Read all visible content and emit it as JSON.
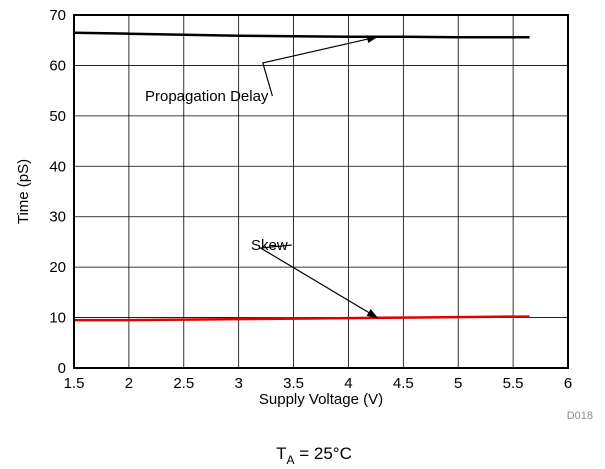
{
  "chart_data": {
    "type": "line",
    "title": "",
    "xlabel": "Supply Voltage (V)",
    "ylabel": "Time (pS)",
    "xlim": [
      1.5,
      6
    ],
    "ylim": [
      0,
      70
    ],
    "xticks": [
      1.5,
      2,
      2.5,
      3,
      3.5,
      4,
      4.5,
      5,
      5.5,
      6
    ],
    "yticks": [
      0,
      10,
      20,
      30,
      40,
      50,
      60,
      70
    ],
    "xtick_labels": [
      "1.5",
      "2",
      "2.5",
      "3",
      "3.5",
      "4",
      "4.5",
      "5",
      "5.5",
      "6"
    ],
    "ytick_labels": [
      "0",
      "10",
      "20",
      "30",
      "40",
      "50",
      "60",
      "70"
    ],
    "grid": true,
    "series": [
      {
        "name": "Propagation Delay",
        "color": "#000000",
        "x": [
          1.5,
          2.0,
          2.5,
          3.0,
          3.5,
          4.0,
          4.5,
          5.0,
          5.5,
          5.65
        ],
        "y": [
          66.5,
          66.3,
          66.1,
          65.9,
          65.8,
          65.7,
          65.7,
          65.6,
          65.6,
          65.6
        ]
      },
      {
        "name": "Skew",
        "color": "#e00000",
        "x": [
          1.5,
          2.0,
          2.5,
          3.0,
          3.5,
          4.0,
          4.5,
          5.0,
          5.5,
          5.65
        ],
        "y": [
          9.5,
          9.5,
          9.6,
          9.7,
          9.8,
          9.9,
          10.0,
          10.1,
          10.2,
          10.2
        ]
      }
    ],
    "annotations": [
      {
        "text": "Propagation Delay",
        "arrow_to": [
          4.27,
          65.7
        ]
      },
      {
        "text": "Skew",
        "arrow_to": [
          4.27,
          9.9
        ]
      }
    ],
    "code": "D018",
    "condition": {
      "main": "T",
      "sub": "A",
      "rest": " = 25°C"
    }
  }
}
